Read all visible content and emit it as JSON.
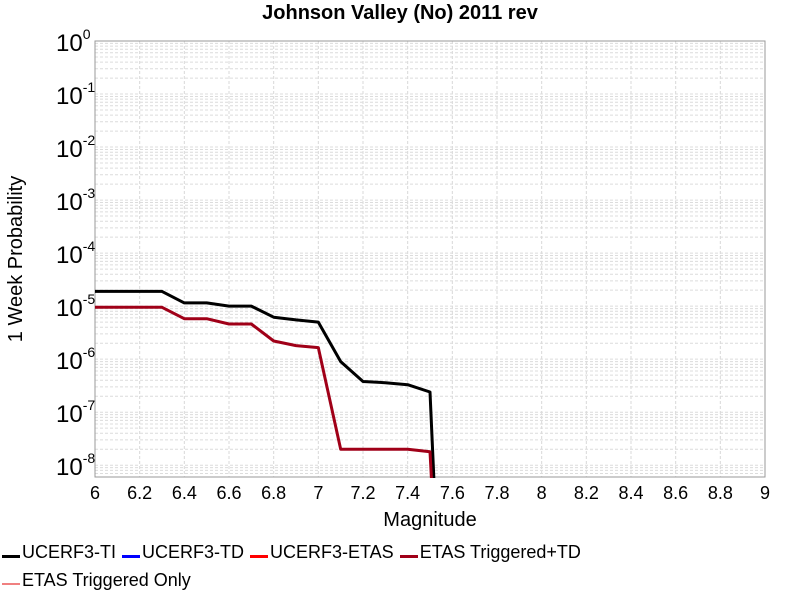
{
  "chart_data": {
    "type": "line",
    "title": "Johnson Valley (No) 2011 rev",
    "xlabel": "Magnitude",
    "ylabel": "1 Week Probability",
    "xlim": [
      6,
      9
    ],
    "ylim": [
      6e-09,
      1
    ],
    "yscale": "log",
    "grid": true,
    "x_ticks": [
      "6",
      "6.2",
      "6.4",
      "6.6",
      "6.8",
      "7",
      "7.2",
      "7.4",
      "7.6",
      "7.8",
      "8",
      "8.2",
      "8.4",
      "8.6",
      "8.8",
      "9"
    ],
    "y_ticks": [
      {
        "base": "10",
        "exp": "0"
      },
      {
        "base": "10",
        "exp": "-1"
      },
      {
        "base": "10",
        "exp": "-2"
      },
      {
        "base": "10",
        "exp": "-3"
      },
      {
        "base": "10",
        "exp": "-4"
      },
      {
        "base": "10",
        "exp": "-5"
      },
      {
        "base": "10",
        "exp": "-6"
      },
      {
        "base": "10",
        "exp": "-7"
      },
      {
        "base": "10",
        "exp": "-8"
      }
    ],
    "legend_position": "bottom",
    "series": [
      {
        "name": "UCERF3-TI",
        "color": "#000000",
        "width": 3,
        "x": [
          6.0,
          6.1,
          6.2,
          6.3,
          6.4,
          6.5,
          6.6,
          6.7,
          6.8,
          6.9,
          7.0,
          7.1,
          7.2,
          7.3,
          7.4,
          7.5,
          7.52
        ],
        "y": [
          1.9e-05,
          1.9e-05,
          1.9e-05,
          1.9e-05,
          1.15e-05,
          1.15e-05,
          1e-05,
          1e-05,
          6.2e-06,
          5.5e-06,
          5e-06,
          9e-07,
          3.8e-07,
          3.6e-07,
          3.3e-07,
          2.4e-07,
          1e-09
        ]
      },
      {
        "name": "UCERF3-TD",
        "color": "#0000ff",
        "width": 3,
        "x": [],
        "y": []
      },
      {
        "name": "UCERF3-ETAS",
        "color": "#ff0000",
        "width": 3,
        "x": [],
        "y": []
      },
      {
        "name": "ETAS Triggered+TD",
        "color": "#a00018",
        "width": 3,
        "x": [
          6.0,
          6.1,
          6.2,
          6.3,
          6.4,
          6.5,
          6.6,
          6.7,
          6.8,
          6.9,
          7.0,
          7.1,
          7.2,
          7.3,
          7.4,
          7.5,
          7.51
        ],
        "y": [
          9.5e-06,
          9.5e-06,
          9.5e-06,
          9.5e-06,
          5.8e-06,
          5.8e-06,
          4.6e-06,
          4.6e-06,
          2.2e-06,
          1.8e-06,
          1.65e-06,
          2e-08,
          2e-08,
          2e-08,
          2e-08,
          1.8e-08,
          1e-09
        ]
      },
      {
        "name": "ETAS Triggered Only",
        "color": "#f08080",
        "width": 2,
        "x": [],
        "y": []
      }
    ]
  }
}
